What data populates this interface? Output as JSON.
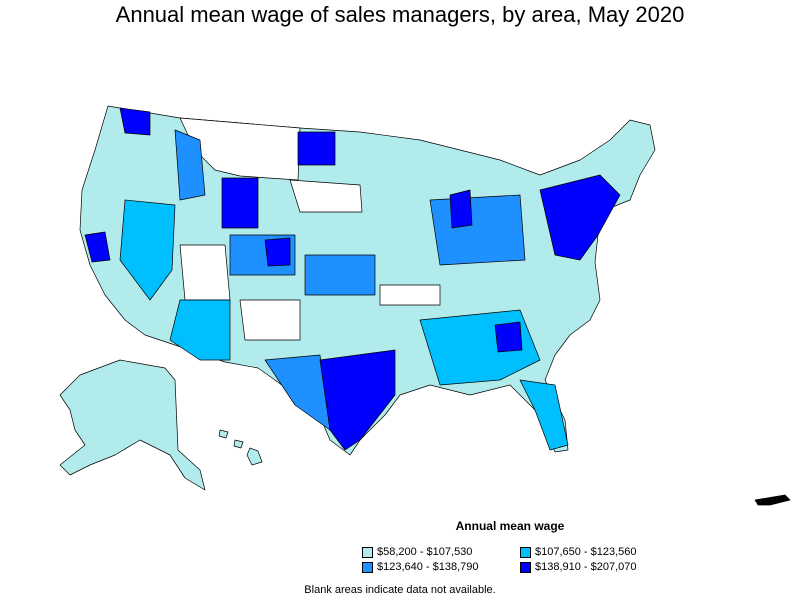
{
  "title": "Annual mean wage of sales managers, by area, May 2020",
  "legend": {
    "title": "Annual mean wage",
    "items": [
      {
        "label": "$58,200 - $107,530",
        "color": "#b2ebeb"
      },
      {
        "label": "$107,650 - $123,560",
        "color": "#00bfff"
      },
      {
        "label": "$123,640 - $138,790",
        "color": "#1e90ff"
      },
      {
        "label": "$138,910 - $207,070",
        "color": "#0000ff"
      }
    ]
  },
  "note": "Blank areas indicate data not available.",
  "colors": {
    "low": "#b2ebeb",
    "mid_low": "#00bfff",
    "mid_high": "#1e90ff",
    "high": "#0000ff",
    "blank": "#ffffff",
    "border": "#000000"
  }
}
